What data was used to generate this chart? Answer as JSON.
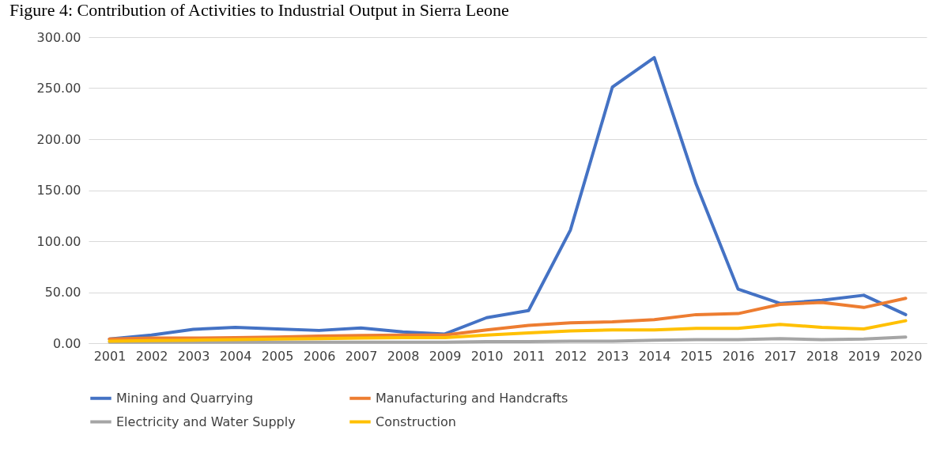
{
  "chart_data": {
    "type": "line",
    "title": "Figure 4: Contribution of Activities to Industrial Output in Sierra Leone",
    "categories": [
      "2001",
      "2002",
      "2003",
      "2004",
      "2005",
      "2006",
      "2007",
      "2008",
      "2009",
      "2010",
      "2011",
      "2012",
      "2013",
      "2014",
      "2015",
      "2016",
      "2017",
      "2018",
      "2019",
      "2020"
    ],
    "series": [
      {
        "name": "Mining and Quarrying",
        "color": "#4472c4",
        "values": [
          4,
          8,
          13.5,
          15.5,
          14,
          12.5,
          15,
          11,
          9,
          25,
          32,
          111,
          251,
          280,
          156,
          53,
          39,
          42,
          47,
          28
        ]
      },
      {
        "name": "Manufacturing and Handcrafts",
        "color": "#ed7d31",
        "values": [
          4,
          5,
          5,
          5.5,
          6,
          7,
          7.5,
          8,
          8,
          13,
          17.5,
          20,
          21,
          23,
          28,
          29,
          38,
          40,
          35,
          44
        ]
      },
      {
        "name": "Electricity and Water Supply",
        "color": "#a5a5a5",
        "values": [
          1,
          1,
          1,
          1,
          1,
          1,
          1,
          1,
          1,
          1.5,
          1.5,
          2,
          2,
          3,
          3.5,
          3.5,
          4.5,
          3.5,
          4,
          6
        ]
      },
      {
        "name": "Construction",
        "color": "#ffc000",
        "values": [
          2,
          2.5,
          3,
          3.5,
          4,
          4.5,
          5,
          5.5,
          5.5,
          8,
          10,
          12,
          13,
          13,
          14.5,
          14.5,
          18.5,
          15.5,
          14,
          22
        ]
      }
    ],
    "ylim": [
      0,
      300
    ],
    "yticks": [
      {
        "value": 0,
        "label": "0.00"
      },
      {
        "value": 50,
        "label": "50.00"
      },
      {
        "value": 100,
        "label": "100.00"
      },
      {
        "value": 150,
        "label": "150.00"
      },
      {
        "value": 200,
        "label": "200.00"
      },
      {
        "value": 250,
        "label": "250.00"
      },
      {
        "value": 300,
        "label": "300.00"
      }
    ],
    "grid": "y",
    "legend": "bottom",
    "marker": "none",
    "line_style": "solid"
  }
}
